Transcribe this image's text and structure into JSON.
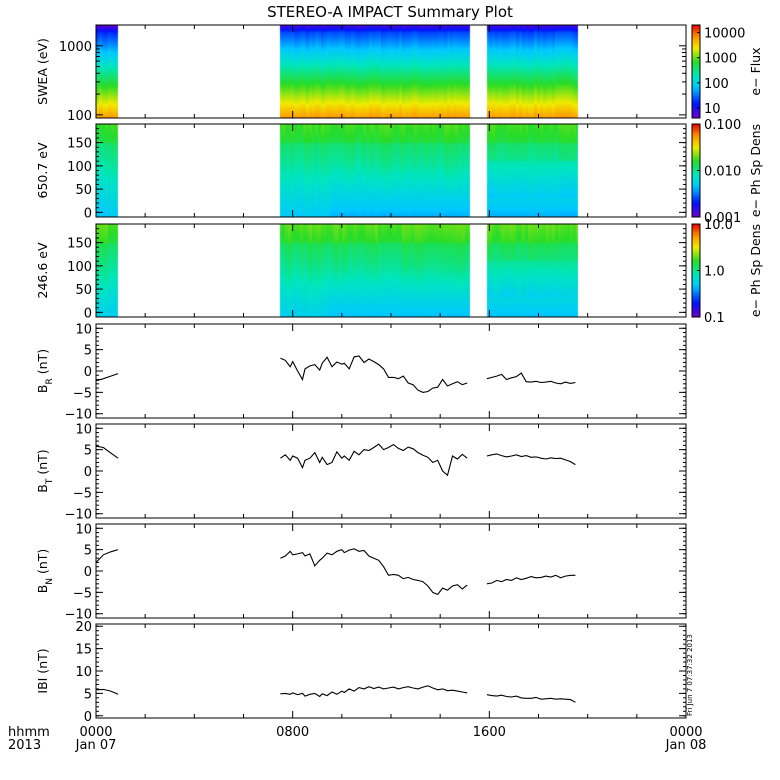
{
  "title": "STEREO-A IMPACT Summary Plot",
  "timestamp": "Fri Jun  7 07:37:32 2013",
  "x_axis": {
    "range_hours": [
      0,
      24
    ],
    "ticks": [
      {
        "hour": 0,
        "time": "0000",
        "date": "Jan 07"
      },
      {
        "hour": 8,
        "time": "0800",
        "date": ""
      },
      {
        "hour": 16,
        "time": "1600",
        "date": ""
      },
      {
        "hour": 24,
        "time": "0000",
        "date": "Jan 08"
      }
    ],
    "corner_label_top": "hhmm",
    "corner_label_bottom": "2013"
  },
  "panels": [
    {
      "id": "swea",
      "ylabel": "SWEA (eV)",
      "type": "spectrogram",
      "scale": "log",
      "ylim": [
        90,
        2000
      ],
      "ticks": [
        {
          "v": 100,
          "label": "100"
        },
        {
          "v": 1000,
          "label": "1000"
        }
      ],
      "colorbar": {
        "label": "e− Flux",
        "scale": "log",
        "range": [
          4,
          20000
        ],
        "ticks": [
          {
            "v": 10,
            "label": "10"
          },
          {
            "v": 100,
            "label": "100"
          },
          {
            "v": 1000,
            "label": "1000"
          },
          {
            "v": 10000,
            "label": "10000"
          }
        ]
      }
    },
    {
      "id": "pad650",
      "ylabel": "650.7  eV",
      "type": "pad",
      "scale": "linear",
      "ylim": [
        -10,
        190
      ],
      "ticks": [
        {
          "v": 0,
          "label": "0"
        },
        {
          "v": 50,
          "label": "50"
        },
        {
          "v": 100,
          "label": "100"
        },
        {
          "v": 150,
          "label": "150"
        }
      ],
      "colorbar": {
        "label": "e− Ph Sp Dens",
        "scale": "log",
        "range": [
          0.001,
          0.1
        ],
        "ticks": [
          {
            "v": 0.001,
            "label": "0.001"
          },
          {
            "v": 0.01,
            "label": "0.010"
          },
          {
            "v": 0.1,
            "label": "0.100"
          }
        ]
      }
    },
    {
      "id": "pad246",
      "ylabel": "246.6  eV",
      "type": "pad",
      "scale": "linear",
      "ylim": [
        -10,
        190
      ],
      "ticks": [
        {
          "v": 0,
          "label": "0"
        },
        {
          "v": 50,
          "label": "50"
        },
        {
          "v": 100,
          "label": "100"
        },
        {
          "v": 150,
          "label": "150"
        }
      ],
      "colorbar": {
        "label": "e− Ph Sp Dens",
        "scale": "log",
        "range": [
          0.1,
          10
        ],
        "ticks": [
          {
            "v": 0.1,
            "label": "0.1"
          },
          {
            "v": 1,
            "label": "1.0"
          },
          {
            "v": 10,
            "label": "10.0"
          }
        ]
      }
    },
    {
      "id": "br",
      "ylabel": "B",
      "ylabel_sub": "R",
      "ylabel_suffix": " (nT)",
      "type": "line",
      "scale": "linear",
      "ylim": [
        -11,
        11
      ],
      "ticks": [
        {
          "v": -10,
          "label": "−10"
        },
        {
          "v": -5,
          "label": "−5"
        },
        {
          "v": 0,
          "label": "0"
        },
        {
          "v": 5,
          "label": "5"
        },
        {
          "v": 10,
          "label": "10"
        }
      ]
    },
    {
      "id": "bt",
      "ylabel": "B",
      "ylabel_sub": "T",
      "ylabel_suffix": " (nT)",
      "type": "line",
      "scale": "linear",
      "ylim": [
        -11,
        11
      ],
      "ticks": [
        {
          "v": -10,
          "label": "−10"
        },
        {
          "v": -5,
          "label": "−5"
        },
        {
          "v": 0,
          "label": "0"
        },
        {
          "v": 5,
          "label": "5"
        },
        {
          "v": 10,
          "label": "10"
        }
      ]
    },
    {
      "id": "bn",
      "ylabel": "B",
      "ylabel_sub": "N",
      "ylabel_suffix": " (nT)",
      "type": "line",
      "scale": "linear",
      "ylim": [
        -11,
        11
      ],
      "ticks": [
        {
          "v": -10,
          "label": "−10"
        },
        {
          "v": -5,
          "label": "−5"
        },
        {
          "v": 0,
          "label": "0"
        },
        {
          "v": 5,
          "label": "5"
        },
        {
          "v": 10,
          "label": "10"
        }
      ]
    },
    {
      "id": "bmag",
      "ylabel": "IBI (nT)",
      "type": "line",
      "scale": "linear",
      "ylim": [
        -0.5,
        20.5
      ],
      "ticks": [
        {
          "v": 0,
          "label": "0"
        },
        {
          "v": 5,
          "label": "5"
        },
        {
          "v": 10,
          "label": "10"
        },
        {
          "v": 15,
          "label": "15"
        },
        {
          "v": 20,
          "label": "20"
        }
      ]
    }
  ],
  "chart_data": {
    "type": "line",
    "title": "STEREO-A IMPACT Summary Plot",
    "xlabel": "",
    "x_units": "hours since 0000 Jan 07 2013",
    "xlim": [
      0,
      24
    ],
    "spectrogram_coverage_hours": [
      [
        0.0,
        0.9
      ],
      [
        7.5,
        15.2
      ],
      [
        15.9,
        19.6
      ]
    ],
    "magnetic_field_series": [
      {
        "name": "BR (nT)",
        "segments": [
          {
            "x": [
              0.0,
              0.3,
              0.6,
              0.9
            ],
            "y": [
              -2.3,
              -1.8,
              -1.2,
              -0.6
            ]
          },
          {
            "x": [
              7.5,
              7.7,
              7.9,
              8.0,
              8.2,
              8.4,
              8.5,
              8.7,
              8.9,
              9.1,
              9.2,
              9.4,
              9.6,
              9.8,
              10.0,
              10.1,
              10.3,
              10.5,
              10.7,
              10.9,
              11.1,
              11.3,
              11.5,
              11.7,
              11.9,
              12.1,
              12.3,
              12.5,
              12.7,
              12.9,
              13.1,
              13.3,
              13.5,
              13.7,
              13.9,
              14.1,
              14.3,
              14.5,
              14.7,
              14.9,
              15.1
            ],
            "y": [
              3.0,
              2.5,
              1.0,
              2.2,
              0.0,
              -2.0,
              0.5,
              1.2,
              1.5,
              0.2,
              1.8,
              3.2,
              1.0,
              2.1,
              1.6,
              1.8,
              0.5,
              3.3,
              3.5,
              2.0,
              2.8,
              2.2,
              1.5,
              0.5,
              -1.5,
              -1.5,
              -1.8,
              -1.2,
              -2.8,
              -3.2,
              -4.5,
              -5.0,
              -4.8,
              -4.0,
              -3.8,
              -2.0,
              -3.5,
              -3.0,
              -2.5,
              -3.2,
              -2.8
            ]
          },
          {
            "x": [
              15.9,
              16.1,
              16.3,
              16.5,
              16.7,
              16.9,
              17.1,
              17.3,
              17.5,
              17.7,
              17.9,
              18.1,
              18.3,
              18.5,
              18.7,
              18.9,
              19.1,
              19.3,
              19.5
            ],
            "y": [
              -1.8,
              -1.5,
              -1.2,
              -0.8,
              -2.0,
              -1.6,
              -1.3,
              -0.5,
              -2.5,
              -2.6,
              -2.4,
              -2.7,
              -2.6,
              -2.4,
              -2.8,
              -3.0,
              -2.6,
              -2.9,
              -2.7
            ]
          }
        ]
      },
      {
        "name": "BT (nT)",
        "segments": [
          {
            "x": [
              0.0,
              0.3,
              0.6,
              0.9
            ],
            "y": [
              5.8,
              5.5,
              4.2,
              3.0
            ]
          },
          {
            "x": [
              7.5,
              7.7,
              7.9,
              8.0,
              8.2,
              8.4,
              8.5,
              8.7,
              8.9,
              9.1,
              9.2,
              9.4,
              9.6,
              9.8,
              10.0,
              10.1,
              10.3,
              10.5,
              10.7,
              10.9,
              11.1,
              11.3,
              11.5,
              11.7,
              11.9,
              12.1,
              12.3,
              12.5,
              12.7,
              12.9,
              13.1,
              13.3,
              13.5,
              13.7,
              13.9,
              14.1,
              14.3,
              14.5,
              14.7,
              14.9,
              15.1
            ],
            "y": [
              3.0,
              3.8,
              2.5,
              3.5,
              3.0,
              0.8,
              2.5,
              3.0,
              4.3,
              2.0,
              3.2,
              1.5,
              2.0,
              4.5,
              3.0,
              3.5,
              2.5,
              4.6,
              3.8,
              5.0,
              4.8,
              5.5,
              6.3,
              5.0,
              5.5,
              6.2,
              5.3,
              4.8,
              5.6,
              5.2,
              4.3,
              3.7,
              3.2,
              2.0,
              2.5,
              0.0,
              -1.0,
              3.5,
              2.8,
              3.9,
              3.0
            ]
          },
          {
            "x": [
              15.9,
              16.1,
              16.3,
              16.5,
              16.7,
              16.9,
              17.1,
              17.3,
              17.5,
              17.7,
              17.9,
              18.1,
              18.3,
              18.5,
              18.7,
              18.9,
              19.1,
              19.3,
              19.5
            ],
            "y": [
              3.5,
              3.8,
              4.0,
              3.6,
              3.3,
              3.5,
              3.8,
              3.4,
              3.6,
              3.2,
              3.3,
              3.0,
              2.8,
              3.1,
              2.9,
              3.0,
              2.6,
              2.2,
              1.5
            ]
          }
        ]
      },
      {
        "name": "BN (nT)",
        "segments": [
          {
            "x": [
              0.0,
              0.3,
              0.6,
              0.9
            ],
            "y": [
              2.0,
              3.8,
              4.5,
              5.0
            ]
          },
          {
            "x": [
              7.5,
              7.7,
              7.9,
              8.0,
              8.2,
              8.4,
              8.5,
              8.7,
              8.9,
              9.1,
              9.2,
              9.4,
              9.6,
              9.8,
              10.0,
              10.1,
              10.3,
              10.5,
              10.7,
              10.9,
              11.1,
              11.3,
              11.5,
              11.7,
              11.9,
              12.1,
              12.3,
              12.5,
              12.7,
              12.9,
              13.1,
              13.3,
              13.5,
              13.7,
              13.9,
              14.1,
              14.3,
              14.5,
              14.7,
              14.9,
              15.1
            ],
            "y": [
              3.0,
              3.5,
              4.6,
              3.8,
              4.0,
              4.3,
              3.5,
              4.0,
              1.2,
              2.5,
              3.0,
              4.2,
              3.8,
              4.6,
              5.0,
              4.3,
              4.9,
              5.2,
              4.6,
              4.8,
              3.5,
              3.0,
              2.5,
              1.0,
              -1.0,
              -0.8,
              -1.0,
              -1.8,
              -1.5,
              -2.0,
              -2.2,
              -2.5,
              -3.5,
              -5.0,
              -5.5,
              -4.0,
              -4.5,
              -3.5,
              -3.2,
              -4.2,
              -3.3
            ]
          },
          {
            "x": [
              15.9,
              16.1,
              16.3,
              16.5,
              16.7,
              16.9,
              17.1,
              17.3,
              17.5,
              17.7,
              17.9,
              18.1,
              18.3,
              18.5,
              18.7,
              18.9,
              19.1,
              19.3,
              19.5
            ],
            "y": [
              -3.0,
              -2.8,
              -2.2,
              -2.5,
              -2.0,
              -2.2,
              -1.6,
              -2.0,
              -1.7,
              -1.3,
              -1.6,
              -1.5,
              -1.2,
              -1.4,
              -1.0,
              -1.6,
              -1.2,
              -1.0,
              -1.0
            ]
          }
        ]
      },
      {
        "name": "|B| (nT)",
        "segments": [
          {
            "x": [
              0.0,
              0.3,
              0.6,
              0.9
            ],
            "y": [
              5.8,
              5.9,
              5.5,
              4.8
            ]
          },
          {
            "x": [
              7.5,
              7.7,
              7.9,
              8.0,
              8.2,
              8.4,
              8.5,
              8.7,
              8.9,
              9.1,
              9.2,
              9.4,
              9.6,
              9.8,
              10.0,
              10.1,
              10.3,
              10.5,
              10.7,
              10.9,
              11.1,
              11.3,
              11.5,
              11.7,
              11.9,
              12.1,
              12.3,
              12.5,
              12.7,
              12.9,
              13.1,
              13.3,
              13.5,
              13.7,
              13.9,
              14.1,
              14.3,
              14.5,
              14.7,
              14.9,
              15.1
            ],
            "y": [
              4.9,
              5.0,
              4.8,
              5.1,
              4.7,
              5.0,
              4.4,
              4.8,
              5.0,
              4.3,
              4.9,
              4.5,
              5.3,
              4.8,
              5.5,
              5.2,
              6.0,
              5.5,
              6.3,
              6.0,
              6.5,
              6.1,
              6.4,
              6.0,
              6.2,
              6.4,
              6.0,
              6.3,
              6.5,
              6.2,
              6.0,
              6.4,
              6.7,
              6.2,
              5.8,
              6.0,
              5.6,
              5.7,
              5.5,
              5.3,
              5.1
            ]
          },
          {
            "x": [
              15.9,
              16.1,
              16.3,
              16.5,
              16.7,
              16.9,
              17.1,
              17.3,
              17.5,
              17.7,
              17.9,
              18.1,
              18.3,
              18.5,
              18.7,
              18.9,
              19.1,
              19.3,
              19.5
            ],
            "y": [
              4.7,
              4.5,
              4.4,
              4.6,
              4.3,
              4.2,
              4.4,
              4.0,
              3.9,
              3.9,
              4.1,
              3.7,
              3.8,
              3.9,
              3.7,
              3.8,
              3.7,
              3.6,
              3.0
            ]
          }
        ]
      }
    ]
  }
}
